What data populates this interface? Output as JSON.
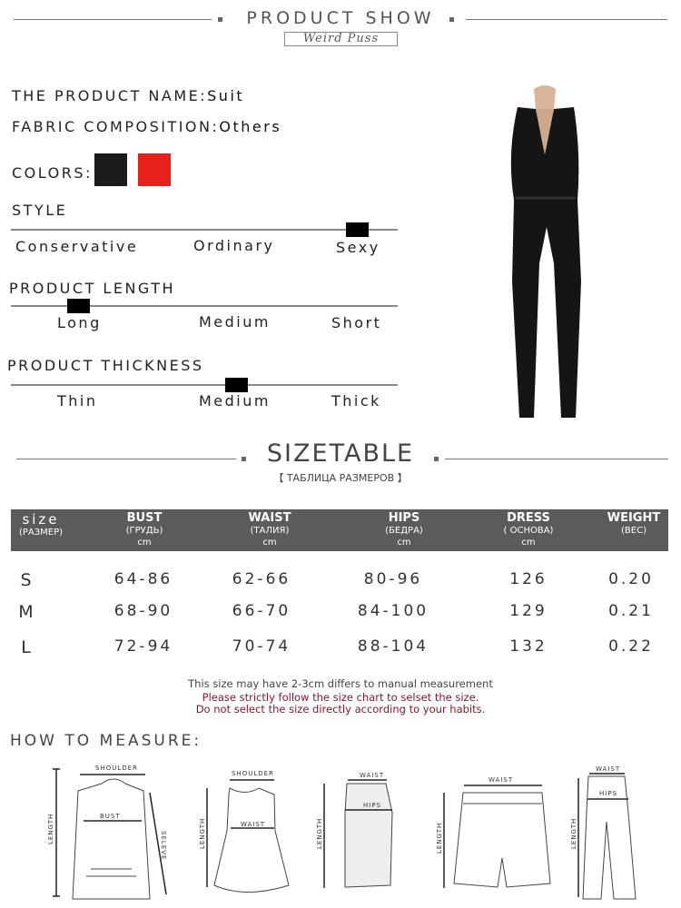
{
  "header": {
    "title": "PRODUCT SHOW",
    "brand": "Weird Puss"
  },
  "product": {
    "name_label": "THE PRODUCT NAME:",
    "name_value": "Suit",
    "fabric_label": "FABRIC COMPOSITION:",
    "fabric_value": "Others",
    "colors_label": "COLORS:",
    "colors": [
      "#1c1a1a",
      "#e8201c"
    ]
  },
  "style": {
    "label": "STYLE",
    "options": [
      "Conservative",
      "Ordinary",
      "Sexy"
    ],
    "selected": "Sexy"
  },
  "length": {
    "label": "PRODUCT LENGTH",
    "options": [
      "Long",
      "Medium",
      "Short"
    ],
    "selected": "Long"
  },
  "thickness": {
    "label": "PRODUCT THICKNESS",
    "options": [
      "Thin",
      "Medium",
      "Thick"
    ],
    "selected": "Medium"
  },
  "sizetable": {
    "title": "SIZETABLE",
    "subtitle": "【 ТАБЛИЦА РАЗМЕРОВ 】",
    "columns": [
      {
        "main": "size",
        "sub": "(РАЗМЕР)",
        "unit": ""
      },
      {
        "main": "BUST",
        "sub": "(ГРУДЬ)",
        "unit": "cm"
      },
      {
        "main": "WAIST",
        "sub": "(ТАЛИЯ)",
        "unit": "cm"
      },
      {
        "main": "HIPS",
        "sub": "(БЕДРА)",
        "unit": "cm"
      },
      {
        "main": "DRESS",
        "sub": "( ОСНОВА)",
        "unit": "cm"
      },
      {
        "main": "WEIGHT",
        "sub": "(ВЕС)",
        "unit": ""
      }
    ],
    "rows": [
      [
        "S",
        "64-86",
        "62-66",
        "80-96",
        "126",
        "0.20"
      ],
      [
        "M",
        "68-90",
        "66-70",
        "84-100",
        "129",
        "0.21"
      ],
      [
        "L",
        "72-94",
        "70-74",
        "88-104",
        "132",
        "0.22"
      ]
    ],
    "note": "This size may have 2-3cm differs to manual measurement",
    "warning1": "Please strictly follow the size chart to selset the size.",
    "warning2": "Do not select the size directly according to your habits."
  },
  "measure": {
    "title": "HOW TO MEASURE:",
    "labels": {
      "shoulder": "SHOULDER",
      "bust": "BUST",
      "length": "LENGTH",
      "sleeve": "SELEVE",
      "waist": "WAIST",
      "hips": "HIPS"
    }
  }
}
